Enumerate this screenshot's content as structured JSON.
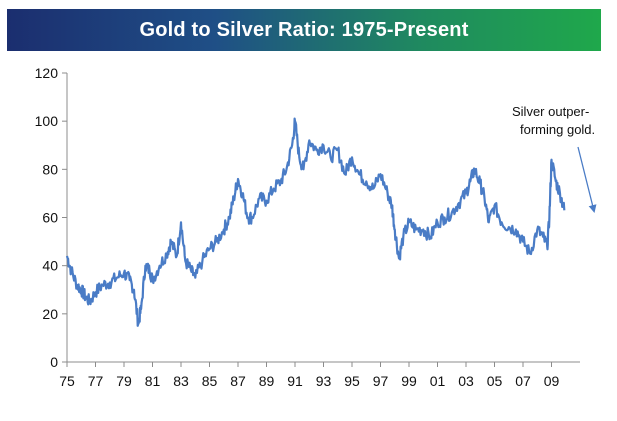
{
  "chart_data": {
    "type": "line",
    "title": "Gold to Silver Ratio: 1975-Present",
    "xlabel": "",
    "ylabel": "",
    "xlim": [
      1975,
      2011
    ],
    "ylim": [
      0,
      120
    ],
    "y_ticks": [
      0,
      20,
      40,
      60,
      80,
      100,
      120
    ],
    "x_tick_values": [
      1975,
      1977,
      1979,
      1981,
      1983,
      1985,
      1987,
      1989,
      1991,
      1993,
      1995,
      1997,
      1999,
      2001,
      2003,
      2005,
      2007,
      2009
    ],
    "x_tick_labels": [
      "75",
      "77",
      "79",
      "81",
      "83",
      "85",
      "87",
      "89",
      "91",
      "93",
      "95",
      "97",
      "99",
      "01",
      "03",
      "05",
      "07",
      "09"
    ],
    "grid": false,
    "line_color": "#4a7cc6",
    "annotation": {
      "lines": [
        "Silver outper-",
        "forming gold."
      ]
    },
    "series": [
      {
        "name": "",
        "x": [
          1975.0,
          1975.3,
          1975.7,
          1976.0,
          1976.3,
          1976.6,
          1977.0,
          1977.5,
          1978.0,
          1978.5,
          1979.0,
          1979.4,
          1979.7,
          1980.0,
          1980.2,
          1980.5,
          1980.8,
          1981.0,
          1981.5,
          1982.0,
          1982.3,
          1982.7,
          1983.0,
          1983.3,
          1983.7,
          1984.0,
          1984.5,
          1985.0,
          1985.5,
          1986.0,
          1986.4,
          1986.7,
          1987.0,
          1987.3,
          1987.7,
          1988.0,
          1988.5,
          1989.0,
          1989.5,
          1990.0,
          1990.4,
          1990.8,
          1991.0,
          1991.3,
          1991.6,
          1992.0,
          1992.5,
          1993.0,
          1993.5,
          1994.0,
          1994.5,
          1995.0,
          1995.5,
          1996.0,
          1996.5,
          1997.0,
          1997.5,
          1997.8,
          1998.0,
          1998.3,
          1998.6,
          1999.0,
          1999.5,
          2000.0,
          2000.5,
          2001.0,
          2001.5,
          2002.0,
          2002.5,
          2003.0,
          2003.3,
          2003.6,
          2004.0,
          2004.3,
          2004.6,
          2005.0,
          2005.5,
          2006.0,
          2006.5,
          2007.0,
          2007.5,
          2008.0,
          2008.4,
          2008.7,
          2008.85,
          2009.0,
          2009.3,
          2009.6,
          2009.9
        ],
        "y": [
          44,
          38,
          32,
          30,
          27,
          25,
          29,
          32,
          33,
          35,
          37,
          34,
          30,
          16,
          22,
          40,
          38,
          34,
          40,
          45,
          50,
          44,
          58,
          42,
          38,
          35,
          42,
          47,
          50,
          55,
          60,
          68,
          76,
          70,
          60,
          60,
          68,
          67,
          72,
          75,
          80,
          90,
          100,
          85,
          80,
          92,
          88,
          90,
          85,
          88,
          78,
          85,
          78,
          75,
          72,
          78,
          70,
          65,
          55,
          43,
          52,
          58,
          55,
          55,
          52,
          58,
          60,
          62,
          66,
          70,
          75,
          80,
          74,
          68,
          58,
          65,
          58,
          56,
          55,
          50,
          45,
          55,
          52,
          48,
          60,
          84,
          75,
          70,
          63
        ]
      }
    ]
  }
}
